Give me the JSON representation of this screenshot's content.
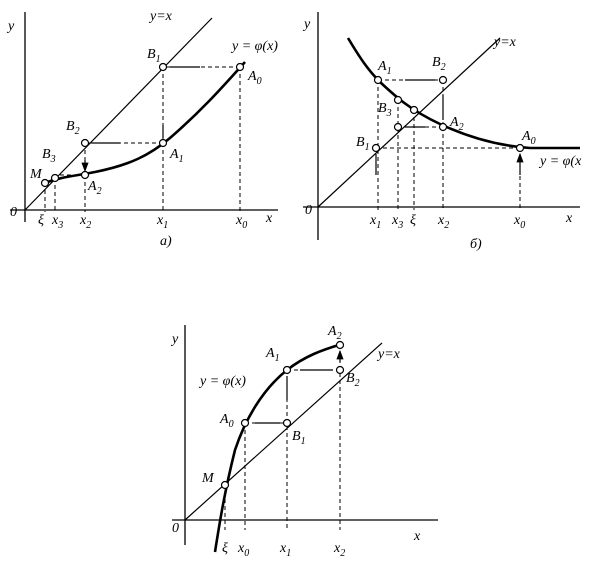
{
  "panels": [
    {
      "labels": [
        {
          "text": "y"
        },
        {
          "text": "0"
        },
        {
          "text": "y=x"
        },
        {
          "text": "B",
          "sub": "1"
        },
        {
          "text": "y = φ(x)"
        },
        {
          "text": "A",
          "sub": "0"
        },
        {
          "text": "B",
          "sub": "2"
        },
        {
          "text": "A",
          "sub": "1"
        },
        {
          "text": "M"
        },
        {
          "text": "B",
          "sub": "3"
        },
        {
          "text": "A",
          "sub": "2"
        },
        {
          "text": "ξ"
        },
        {
          "text": "x",
          "sub": "3"
        },
        {
          "text": "x",
          "sub": "2"
        },
        {
          "text": "x",
          "sub": "1"
        },
        {
          "text": "x",
          "sub": "0"
        },
        {
          "text": "x"
        },
        {
          "text": "а)"
        }
      ]
    },
    {
      "labels": [
        {
          "text": "y"
        },
        {
          "text": "0"
        },
        {
          "text": "y=x"
        },
        {
          "text": "A",
          "sub": "1"
        },
        {
          "text": "B",
          "sub": "2"
        },
        {
          "text": "B",
          "sub": "3"
        },
        {
          "text": "A",
          "sub": "2"
        },
        {
          "text": "B",
          "sub": "1"
        },
        {
          "text": "A",
          "sub": "0"
        },
        {
          "text": "y = φ(x"
        },
        {
          "text": "ξ"
        },
        {
          "text": "x",
          "sub": "1"
        },
        {
          "text": "x",
          "sub": "3"
        },
        {
          "text": "x",
          "sub": "2"
        },
        {
          "text": "x",
          "sub": "0"
        },
        {
          "text": "x"
        },
        {
          "text": "б)"
        }
      ]
    },
    {
      "labels": [
        {
          "text": "y"
        },
        {
          "text": "0"
        },
        {
          "text": "A",
          "sub": "2"
        },
        {
          "text": "y=x"
        },
        {
          "text": "A",
          "sub": "1"
        },
        {
          "text": "y = φ(x)"
        },
        {
          "text": "B",
          "sub": "2"
        },
        {
          "text": "A",
          "sub": "0"
        },
        {
          "text": "B",
          "sub": "1"
        },
        {
          "text": "M"
        },
        {
          "text": "ξ"
        },
        {
          "text": "x",
          "sub": "0"
        },
        {
          "text": "x",
          "sub": "1"
        },
        {
          "text": "x",
          "sub": "2"
        },
        {
          "text": "x"
        }
      ]
    }
  ]
}
